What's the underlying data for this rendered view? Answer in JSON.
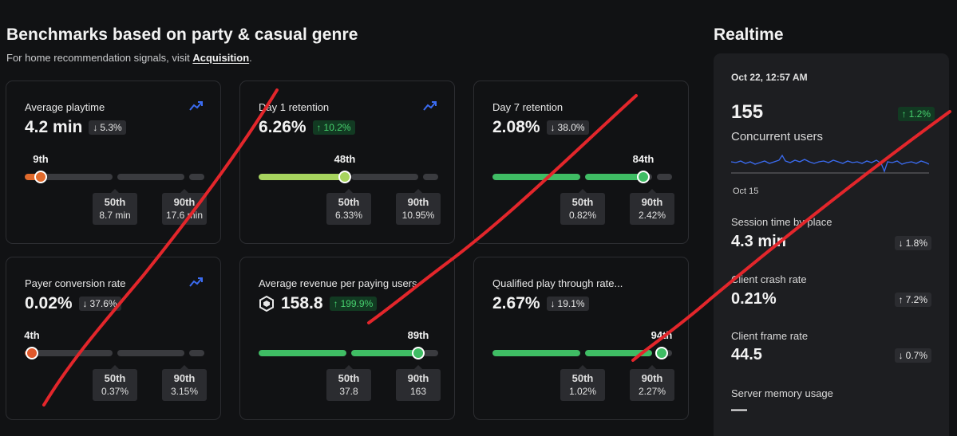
{
  "header": {
    "title": "Benchmarks based on party & casual genre",
    "subtitle_prefix": "For home recommendation signals, visit ",
    "subtitle_link": "Acquisition",
    "subtitle_suffix": "."
  },
  "colors": {
    "orange": "#e06a2c",
    "green": "#3fbd64",
    "lime": "#a7d45e",
    "red_dot": "#e0592c",
    "track": "#3a3b3f",
    "trend_icon": "#3b6cf2",
    "annotation_red": "#e3262b"
  },
  "cards": [
    {
      "label": "Average playtime",
      "value": "4.2 min",
      "badge": {
        "dir": "down",
        "arrow": "↓",
        "text": "5.3%"
      },
      "trend_icon": "trend-chart-icon",
      "show_trend": true,
      "marker": {
        "label": "9th",
        "percentile": 9,
        "color": "#e06a2c"
      },
      "p50": {
        "label": "50th",
        "value": "8.7 min"
      },
      "p90": {
        "label": "90th",
        "value": "17.6 min"
      }
    },
    {
      "label": "Day 1 retention",
      "value": "6.26%",
      "badge": {
        "dir": "up",
        "arrow": "↑",
        "text": "10.2%"
      },
      "trend_icon": "trend-chart-icon",
      "show_trend": true,
      "marker": {
        "label": "48th",
        "percentile": 48,
        "color": "#a7d45e"
      },
      "p50": {
        "label": "50th",
        "value": "6.33%"
      },
      "p90": {
        "label": "90th",
        "value": "10.95%"
      }
    },
    {
      "label": "Day 7 retention",
      "value": "2.08%",
      "badge": {
        "dir": "down",
        "arrow": "↓",
        "text": "38.0%"
      },
      "show_trend": false,
      "marker": {
        "label": "84th",
        "percentile": 84,
        "color": "#3fbd64"
      },
      "p50": {
        "label": "50th",
        "value": "0.82%"
      },
      "p90": {
        "label": "90th",
        "value": "2.42%"
      }
    },
    {
      "label": "Payer conversion rate",
      "value": "0.02%",
      "badge": {
        "dir": "down",
        "arrow": "↓",
        "text": "37.6%"
      },
      "trend_icon": "trend-chart-icon",
      "show_trend": true,
      "marker": {
        "label": "4th",
        "percentile": 4,
        "color": "#e0592c"
      },
      "p50": {
        "label": "50th",
        "value": "0.37%"
      },
      "p90": {
        "label": "90th",
        "value": "3.15%"
      }
    },
    {
      "label": "Average revenue per paying users",
      "value": "158.8",
      "currency_icon": "robux-icon",
      "badge": {
        "dir": "up",
        "arrow": "↑",
        "text": "199.9%"
      },
      "show_trend": false,
      "marker": {
        "label": "89th",
        "percentile": 89,
        "color": "#3fbd64"
      },
      "p50": {
        "label": "50th",
        "value": "37.8"
      },
      "p90": {
        "label": "90th",
        "value": "163"
      }
    },
    {
      "label": "Qualified play through rate...",
      "value": "2.67%",
      "badge": {
        "dir": "down",
        "arrow": "↓",
        "text": "19.1%"
      },
      "show_trend": false,
      "marker": {
        "label": "94th",
        "percentile": 94,
        "color": "#3fbd64"
      },
      "p50": {
        "label": "50th",
        "value": "1.02%"
      },
      "p90": {
        "label": "90th",
        "value": "2.27%"
      }
    }
  ],
  "realtime": {
    "title": "Realtime",
    "date": "Oct 22, 12:57 AM",
    "concurrent_value": "155",
    "concurrent_label": "Concurrent users",
    "concurrent_badge": {
      "arrow": "↑",
      "text": "1.2%"
    },
    "spark_start_label": "Oct 15",
    "spark_color": "#3b6cf2",
    "metrics": [
      {
        "label": "Session time by place",
        "value": "4.3 min",
        "badge": {
          "arrow": "↓",
          "text": "1.8%"
        }
      },
      {
        "label": "Client crash rate",
        "value": "0.21%",
        "badge": {
          "arrow": "↑",
          "text": "7.2%"
        }
      },
      {
        "label": "Client frame rate",
        "value": "44.5",
        "badge": {
          "arrow": "↓",
          "text": "0.7%"
        }
      },
      {
        "label": "Server memory usage",
        "value": "—",
        "badge": null
      }
    ]
  }
}
